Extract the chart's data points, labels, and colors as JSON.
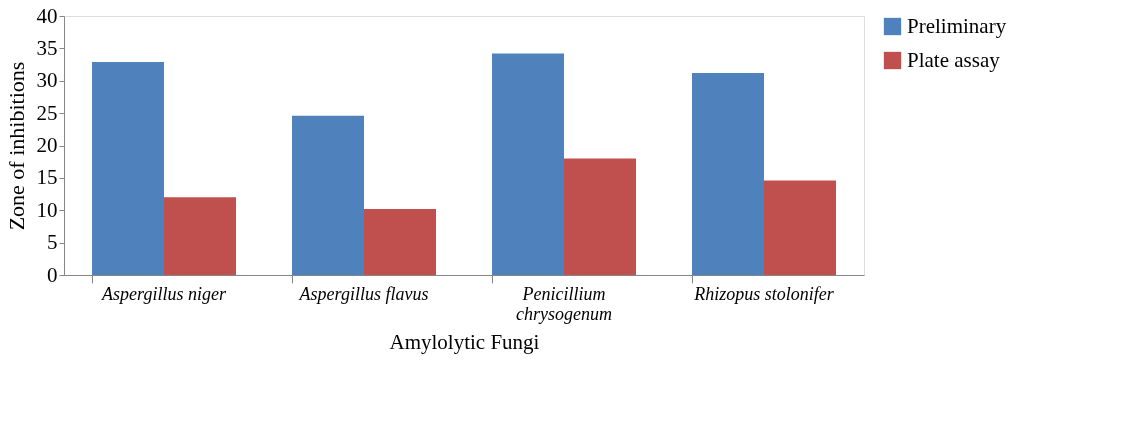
{
  "chart_data": {
    "type": "bar",
    "xlabel": "Amylolytic Fungi",
    "ylabel": "Zone of inhibitions",
    "categories": [
      "Aspergillus niger",
      "Aspergillus flavus",
      "Penicillium chrysogenum",
      "Rhizopus stolonifer"
    ],
    "series": [
      {
        "name": "Preliminary",
        "color": "#4f81bd",
        "values": [
          32.9,
          24.6,
          34.2,
          31.2
        ]
      },
      {
        "name": "Plate assay",
        "color": "#c0504d",
        "values": [
          12.0,
          10.2,
          18.0,
          14.6
        ]
      }
    ],
    "ylim": [
      0,
      40
    ],
    "yticks": [
      0,
      5,
      10,
      15,
      20,
      25,
      30,
      35,
      40
    ],
    "grid": false,
    "legend": "right"
  }
}
